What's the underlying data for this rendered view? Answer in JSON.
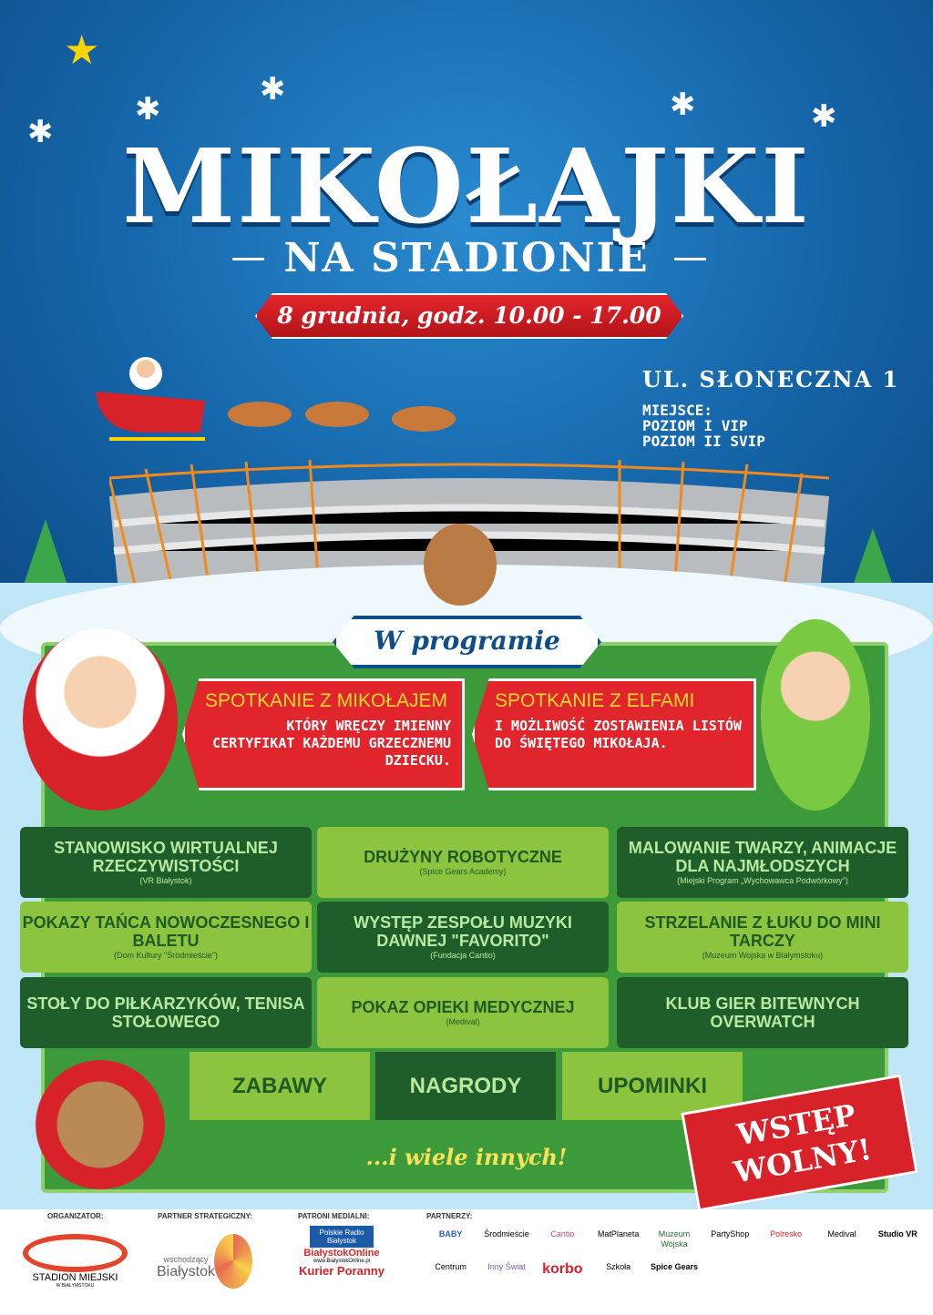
{
  "header": {
    "title": "MIKOŁAJKI",
    "subtitle": "NA STADIONIE",
    "date": "8 grudnia, godz. 10.00 - 17.00",
    "address": "UL. SŁONECZNA 1",
    "venue_label": "MIEJSCE:",
    "venue_lines": [
      "POZIOM I VIP",
      "POZIOM II SVIP"
    ]
  },
  "program": {
    "heading": "W programie",
    "highlights": [
      {
        "title": "SPOTKANIE Z MIKOŁAJEM",
        "text": "KTÓRY WRĘCZY IMIENNY CERTYFIKAT KAŻDEMU GRZECZNEMU DZIECKU."
      },
      {
        "title": "SPOTKANIE Z ELFAMI",
        "text": "I MOŻLIWOŚĆ ZOSTAWIENIA LISTÓW DO ŚWIĘTEGO MIKOŁAJA."
      }
    ],
    "tiles": [
      {
        "title": "STANOWISKO WIRTUALNEJ RZECZYWISTOŚCI",
        "sub": "(VR Białystok)"
      },
      {
        "title": "DRUŻYNY ROBOTYCZNE",
        "sub": "(Spice Gears Academy)"
      },
      {
        "title": "MALOWANIE TWARZY, ANIMACJE DLA NAJMŁODSZYCH",
        "sub": "(Miejski Program „Wychowawca Podwórkowy\")"
      },
      {
        "title": "POKAZY TAŃCA NOWOCZESNEGO I BALETU",
        "sub": "(Dom Kultury \"Śródmieście\")"
      },
      {
        "title": "WYSTĘP ZESPOŁU MUZYKI DAWNEJ \"FAVORITO\"",
        "sub": "(Fundacja Cantio)"
      },
      {
        "title": "STRZELANIE Z ŁUKU DO MINI TARCZY",
        "sub": "(Muzeum Wojska w Białymstoku)"
      },
      {
        "title": "STOŁY DO PIŁKARZYKÓW, TENISA STOŁOWEGO",
        "sub": ""
      },
      {
        "title": "POKAZ OPIEKI MEDYCZNEJ",
        "sub": "(Medival)"
      },
      {
        "title": "KLUB GIER BITEWNYCH OVERWATCH",
        "sub": ""
      }
    ],
    "extras": [
      "ZABAWY",
      "NAGRODY",
      "UPOMINKI"
    ],
    "more": "...i wiele innych!",
    "free_entry": "WSTĘP WOLNY!"
  },
  "footer": {
    "organizer_label": "ORGANIZATOR:",
    "organizer": "STADION MIEJSKI",
    "organizer_sub": "W BIAŁYMSTOKU",
    "strategic_label": "PARTNER STRATEGICZNY:",
    "strategic": "Białystok",
    "strategic_sub": "wschodzący",
    "media_label": "PATRONI MEDIALNI:",
    "media": [
      "Polskie Radio Białystok",
      "BiałystokOnline",
      "www.BialystokOnline.pl",
      "Kurier Poranny"
    ],
    "partners_label": "PARTNERZY:",
    "partners": [
      "BABY",
      "Środmieście",
      "Cantio",
      "MatPlaneta",
      "Muzeum Wojska",
      "PartyShop",
      "Polresko",
      "Medival",
      "Studio VR",
      "Centrum",
      "Inny Świat",
      "korbo",
      "Szkoła",
      "Spice Gears"
    ]
  },
  "colors": {
    "sky": "#1565a8",
    "red": "#e0262c",
    "dark_green": "#1f5e2a",
    "light_green": "#8cc43f",
    "board": "#3d9a3a"
  }
}
